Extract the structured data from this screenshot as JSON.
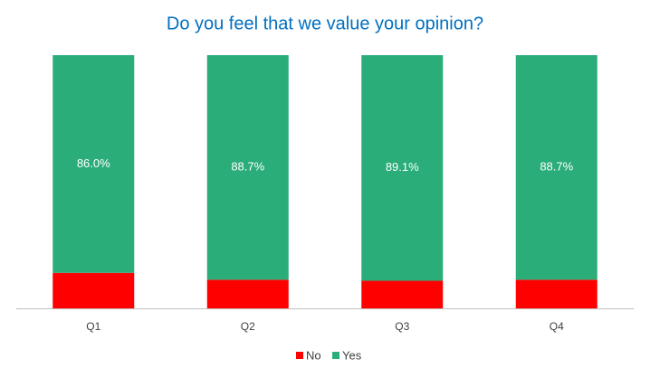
{
  "chart_data": {
    "type": "stacked_bar",
    "title": "Do you feel that we value your opinion?",
    "categories": [
      "Q1",
      "Q2",
      "Q3",
      "Q4"
    ],
    "series": [
      {
        "name": "No",
        "color": "#ff0000",
        "values": [
          14.0,
          11.3,
          10.9,
          11.3
        ]
      },
      {
        "name": "Yes",
        "color": "#2bad7a",
        "values": [
          86.0,
          88.7,
          89.1,
          88.7
        ],
        "value_labels": [
          "86.0%",
          "88.7%",
          "89.1%",
          "88.7%"
        ]
      }
    ],
    "ylim": [
      0,
      100
    ],
    "legend": "bottom"
  }
}
